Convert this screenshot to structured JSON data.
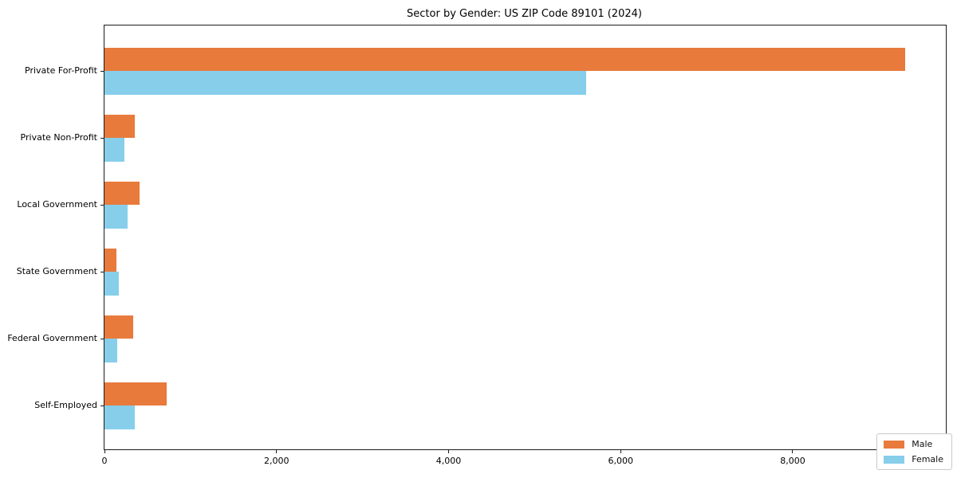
{
  "chart_data": {
    "type": "bar",
    "orientation": "horizontal",
    "title": "Sector by Gender: US ZIP Code 89101 (2024)",
    "categories": [
      "Private For-Profit",
      "Private Non-Profit",
      "Local Government",
      "State Government",
      "Federal Government",
      "Self-Employed"
    ],
    "series": [
      {
        "name": "Male",
        "color": "#E87A3C",
        "values": [
          9310,
          350,
          410,
          135,
          330,
          725
        ]
      },
      {
        "name": "Female",
        "color": "#87CEEB",
        "values": [
          5600,
          230,
          270,
          165,
          150,
          355
        ]
      }
    ],
    "xlabel": "",
    "ylabel": "",
    "xlim": [
      0,
      9780
    ],
    "x_ticks": [
      0,
      2000,
      4000,
      6000,
      8000
    ],
    "x_tick_labels": [
      "0",
      "2,000",
      "4,000",
      "6,000",
      "8,000"
    ],
    "grid": false,
    "legend_position": "lower-right",
    "background_color": "#ffffff"
  }
}
